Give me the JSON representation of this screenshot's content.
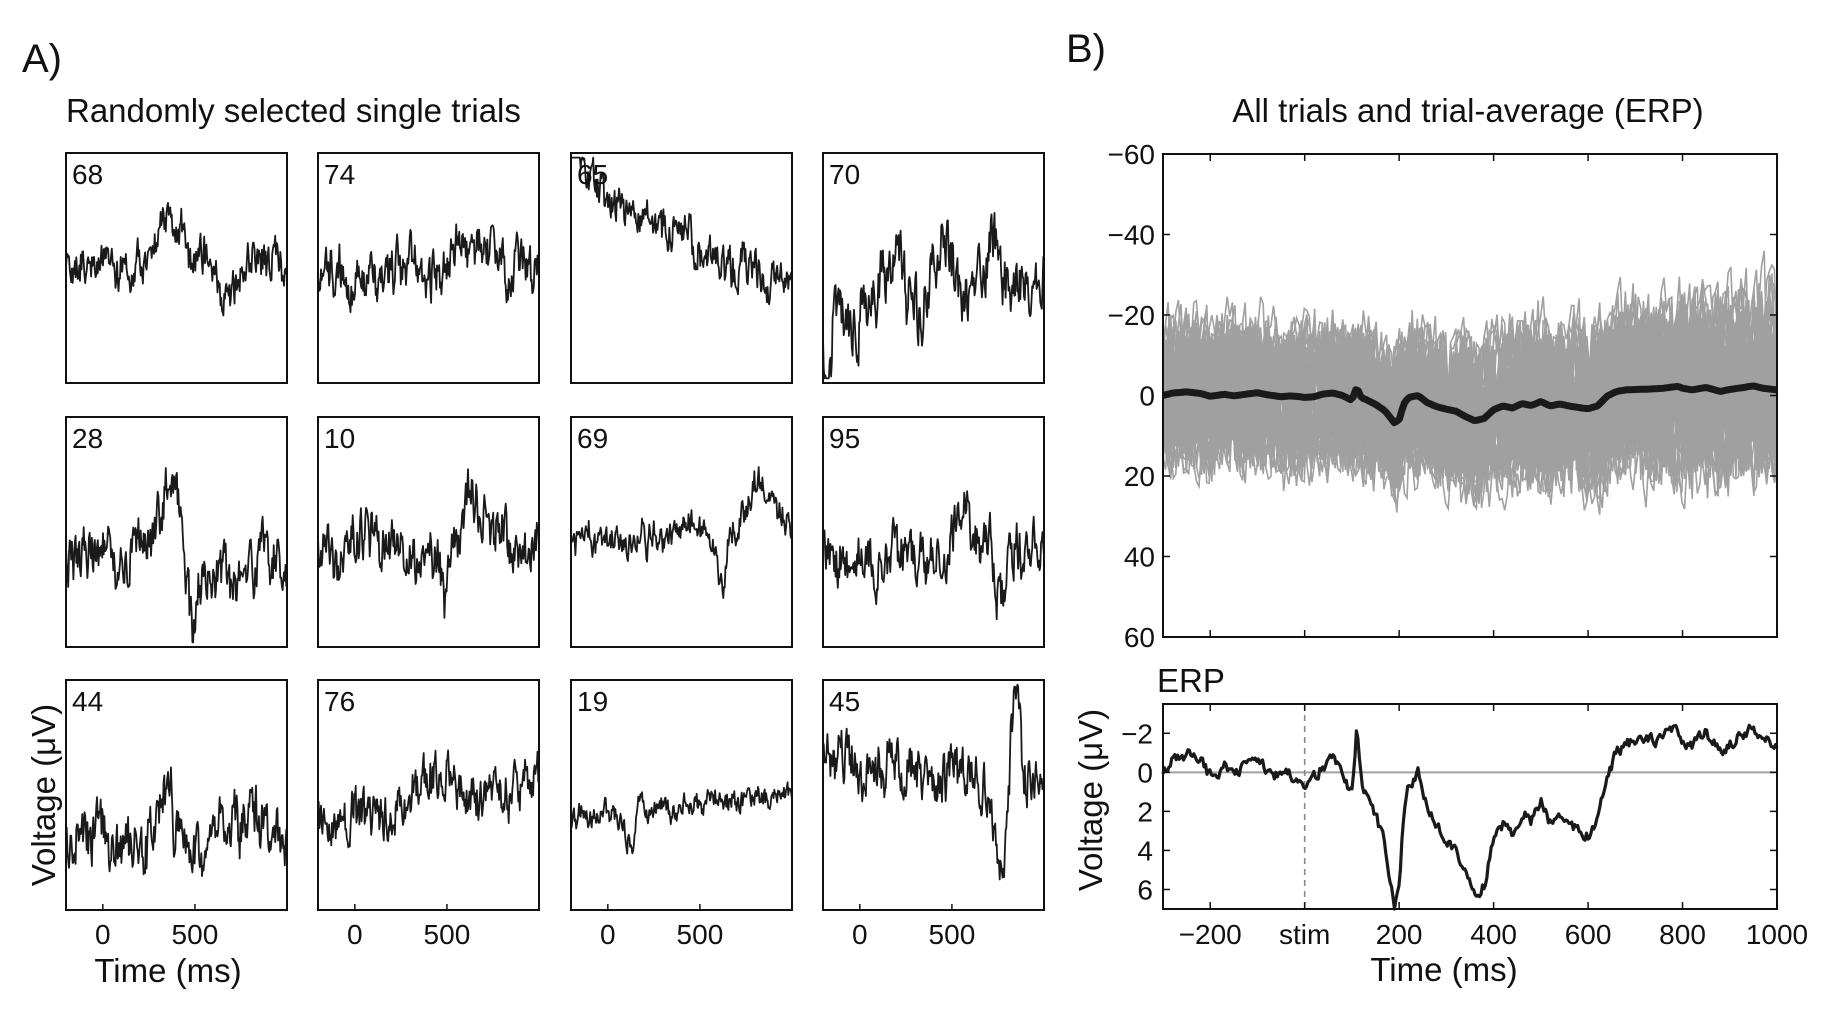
{
  "chart_data": [
    {
      "id": "panel_a",
      "type": "line",
      "panel_label": "A)",
      "title": "Randomly selected single trials",
      "xlabel": "Time (ms)",
      "ylabel": "Voltage (μV)",
      "xlim": [
        -200,
        1000
      ],
      "ylim": [
        -60,
        60
      ],
      "x_ticks": [
        0,
        500
      ],
      "grid": false,
      "trials": [
        {
          "label": "68",
          "seed": 68,
          "level": 0.48,
          "drift": 0.0,
          "noise": 0.09,
          "bumps": [
            [
              0.47,
              -0.2,
              0.08
            ],
            [
              0.74,
              0.18,
              0.05
            ]
          ]
        },
        {
          "label": "74",
          "seed": 74,
          "level": 0.5,
          "drift": -0.05,
          "noise": 0.11,
          "bumps": [
            [
              0.72,
              -0.1,
              0.1
            ]
          ]
        },
        {
          "label": "65",
          "seed": 65,
          "level": 0.38,
          "drift": 0.42,
          "noise": 0.09,
          "bumps": [
            [
              0.02,
              -0.3,
              0.03
            ]
          ]
        },
        {
          "label": "70",
          "seed": 70,
          "level": 0.62,
          "drift": -0.15,
          "noise": 0.14,
          "bumps": [
            [
              0.33,
              -0.3,
              0.05
            ],
            [
              0.55,
              -0.3,
              0.05
            ],
            [
              0.77,
              -0.3,
              0.04
            ],
            [
              0.02,
              0.5,
              0.02
            ]
          ]
        },
        {
          "label": "28",
          "seed": 28,
          "level": 0.62,
          "drift": 0.0,
          "noise": 0.12,
          "bumps": [
            [
              0.47,
              -0.38,
              0.05
            ],
            [
              0.57,
              0.25,
              0.03
            ]
          ]
        },
        {
          "label": "10",
          "seed": 10,
          "level": 0.55,
          "drift": -0.1,
          "noise": 0.12,
          "bumps": [
            [
              0.58,
              0.3,
              0.025
            ],
            [
              0.72,
              -0.25,
              0.06
            ]
          ]
        },
        {
          "label": "69",
          "seed": 69,
          "level": 0.5,
          "drift": -0.1,
          "noise": 0.07,
          "bumps": [
            [
              0.68,
              0.25,
              0.03
            ],
            [
              0.85,
              -0.2,
              0.05
            ]
          ]
        },
        {
          "label": "95",
          "seed": 95,
          "level": 0.62,
          "drift": 0.0,
          "noise": 0.11,
          "bumps": [
            [
              0.63,
              -0.18,
              0.05
            ],
            [
              0.8,
              0.2,
              0.03
            ]
          ]
        },
        {
          "label": "44",
          "seed": 44,
          "level": 0.68,
          "drift": -0.05,
          "noise": 0.13,
          "bumps": [
            [
              0.45,
              -0.25,
              0.04
            ],
            [
              0.62,
              0.15,
              0.04
            ]
          ]
        },
        {
          "label": "76",
          "seed": 76,
          "level": 0.55,
          "drift": -0.18,
          "noise": 0.11,
          "bumps": [
            [
              0.5,
              -0.12,
              0.1
            ]
          ]
        },
        {
          "label": "19",
          "seed": 19,
          "level": 0.55,
          "drift": -0.1,
          "noise": 0.05,
          "bumps": [
            [
              0.31,
              -0.15,
              0.02
            ],
            [
              0.28,
              0.18,
              0.05
            ]
          ]
        },
        {
          "label": "45",
          "seed": 45,
          "level": 0.4,
          "drift": 0.15,
          "noise": 0.12,
          "bumps": [
            [
              0.8,
              0.35,
              0.04
            ],
            [
              0.87,
              -0.4,
              0.025
            ]
          ]
        }
      ]
    },
    {
      "id": "panel_b_all",
      "type": "line",
      "panel_label": "B)",
      "title": "All trials and trial-average (ERP)",
      "xlim": [
        -300,
        1000
      ],
      "ylim": [
        -60,
        60
      ],
      "y_reversed": true,
      "y_ticks": [
        -60,
        -40,
        -20,
        0,
        20,
        40,
        60
      ],
      "y_tick_labels": [
        "−60",
        "−40",
        "−20",
        "0",
        "20",
        "40",
        "60"
      ],
      "grid": false,
      "trials_color": "#a0a0a0",
      "erp_color": "#1a1a1a"
    },
    {
      "id": "panel_b_erp",
      "type": "line",
      "title": "ERP",
      "xlabel": "Time (ms)",
      "ylabel": "Voltage (μV)",
      "xlim": [
        -300,
        1000
      ],
      "ylim": [
        -3.5,
        7
      ],
      "y_reversed": true,
      "y_ticks": [
        -2,
        0,
        2,
        4,
        6
      ],
      "y_tick_labels": [
        "−2",
        "0",
        "2",
        "4",
        "6"
      ],
      "x_ticks": [
        -200,
        0,
        200,
        400,
        600,
        800,
        1000
      ],
      "x_tick_labels": [
        "−200",
        "stim",
        "200",
        "400",
        "600",
        "800",
        "1000"
      ],
      "grid": false,
      "stim_marker_x": 0,
      "zero_line": 0,
      "erp_anchors": {
        "x": [
          -300,
          -280,
          -250,
          -220,
          -200,
          -170,
          -150,
          -120,
          -100,
          -80,
          -50,
          -30,
          -10,
          0,
          20,
          40,
          60,
          80,
          100,
          110,
          120,
          130,
          150,
          170,
          190,
          200,
          210,
          220,
          240,
          260,
          280,
          300,
          320,
          340,
          360,
          380,
          400,
          420,
          440,
          460,
          480,
          500,
          520,
          540,
          560,
          580,
          600,
          620,
          640,
          660,
          680,
          700,
          730,
          760,
          790,
          800,
          820,
          850,
          880,
          900,
          930,
          950,
          970,
          1000
        ],
        "y": [
          0.0,
          -0.6,
          -0.9,
          -0.5,
          0.2,
          -0.3,
          0.1,
          -0.4,
          -0.7,
          -0.2,
          0.3,
          0.1,
          0.3,
          0.5,
          0.3,
          -0.4,
          -0.6,
          0.0,
          1.2,
          -2.1,
          0.6,
          1.0,
          2.2,
          3.8,
          6.8,
          6.0,
          2.0,
          0.5,
          0.0,
          1.8,
          2.8,
          3.4,
          3.9,
          5.2,
          6.3,
          5.7,
          3.5,
          2.6,
          3.1,
          2.0,
          2.5,
          1.5,
          2.6,
          2.1,
          2.6,
          3.0,
          3.3,
          2.6,
          0.2,
          -1.0,
          -1.4,
          -1.5,
          -1.6,
          -1.8,
          -2.3,
          -1.8,
          -1.4,
          -2.0,
          -1.0,
          -1.5,
          -2.0,
          -2.4,
          -1.8,
          -1.4
        ]
      }
    }
  ]
}
